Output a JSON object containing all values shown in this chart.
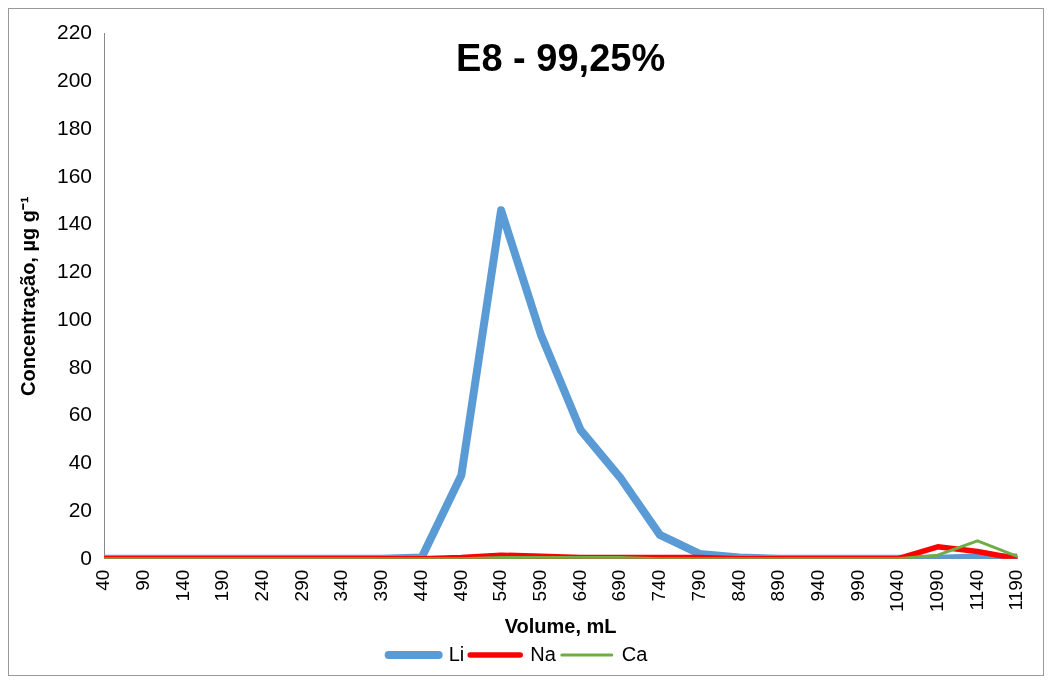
{
  "chart_data": {
    "type": "line",
    "title": "E8 - 99,25%",
    "xlabel": "Volume, mL",
    "ylabel": "Concentração, µg g⁻¹",
    "categories": [
      "40",
      "90",
      "140",
      "190",
      "240",
      "290",
      "340",
      "390",
      "440",
      "490",
      "540",
      "590",
      "640",
      "690",
      "740",
      "790",
      "840",
      "890",
      "940",
      "990",
      "1040",
      "1090",
      "1140",
      "1190"
    ],
    "series": [
      {
        "name": "Li",
        "color": "#5b9bd5",
        "values": [
          0,
          0,
          0,
          0,
          0,
          0,
          0,
          0,
          0.5,
          35,
          146,
          94,
          54,
          34,
          10,
          2,
          0.5,
          0,
          0,
          0,
          0,
          0,
          0.5,
          0.5
        ]
      },
      {
        "name": "Na",
        "color": "#ff0000",
        "values": [
          0,
          0,
          0,
          0,
          0,
          0,
          0,
          0,
          0,
          0.5,
          1.5,
          1,
          0.5,
          0.5,
          0.5,
          0.5,
          0,
          0,
          0,
          0,
          0,
          5,
          3,
          0
        ]
      },
      {
        "name": "Ca",
        "color": "#70ad47",
        "values": [
          0,
          0,
          0,
          0,
          0,
          0,
          0,
          0,
          0,
          0,
          0.5,
          0.5,
          0.5,
          0.5,
          0,
          0,
          0,
          0,
          0,
          0,
          0,
          1.5,
          7.5,
          1
        ]
      }
    ],
    "ylim": [
      0,
      220
    ],
    "yticks": [
      0,
      20,
      40,
      60,
      80,
      100,
      120,
      140,
      160,
      180,
      200,
      220
    ],
    "grid": false,
    "legend": "bottom",
    "marker": "none",
    "line_style": "solid"
  }
}
